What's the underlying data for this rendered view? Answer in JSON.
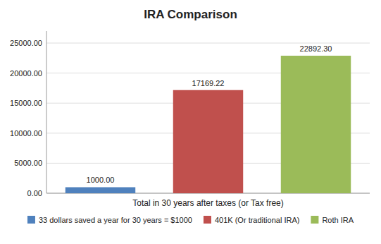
{
  "chart_data": {
    "type": "bar",
    "title": "IRA Comparison",
    "categories": [
      "33 dollars saved a year for 30 years = $1000",
      "401K (Or traditional IRA)",
      "Roth IRA"
    ],
    "values": [
      1000.0,
      17169.22,
      22892.3
    ],
    "value_labels": [
      "1000.00",
      "17169.22",
      "22892.30"
    ],
    "colors": [
      "#4F81BD",
      "#C0504D",
      "#9BBB59"
    ],
    "xlabel": "Total in 30 years after taxes (or Tax free)",
    "ylim": [
      0,
      27000
    ],
    "yticks": [
      {
        "value": 0,
        "label": "0.00"
      },
      {
        "value": 5000,
        "label": "5000.00"
      },
      {
        "value": 10000,
        "label": "10000.00"
      },
      {
        "value": 15000,
        "label": "15000.00"
      },
      {
        "value": 20000,
        "label": "20000.00"
      },
      {
        "value": 25000,
        "label": "25000.00"
      }
    ],
    "grid": true,
    "legend": "bottom",
    "data_labels": true,
    "tick_labels": "y"
  }
}
